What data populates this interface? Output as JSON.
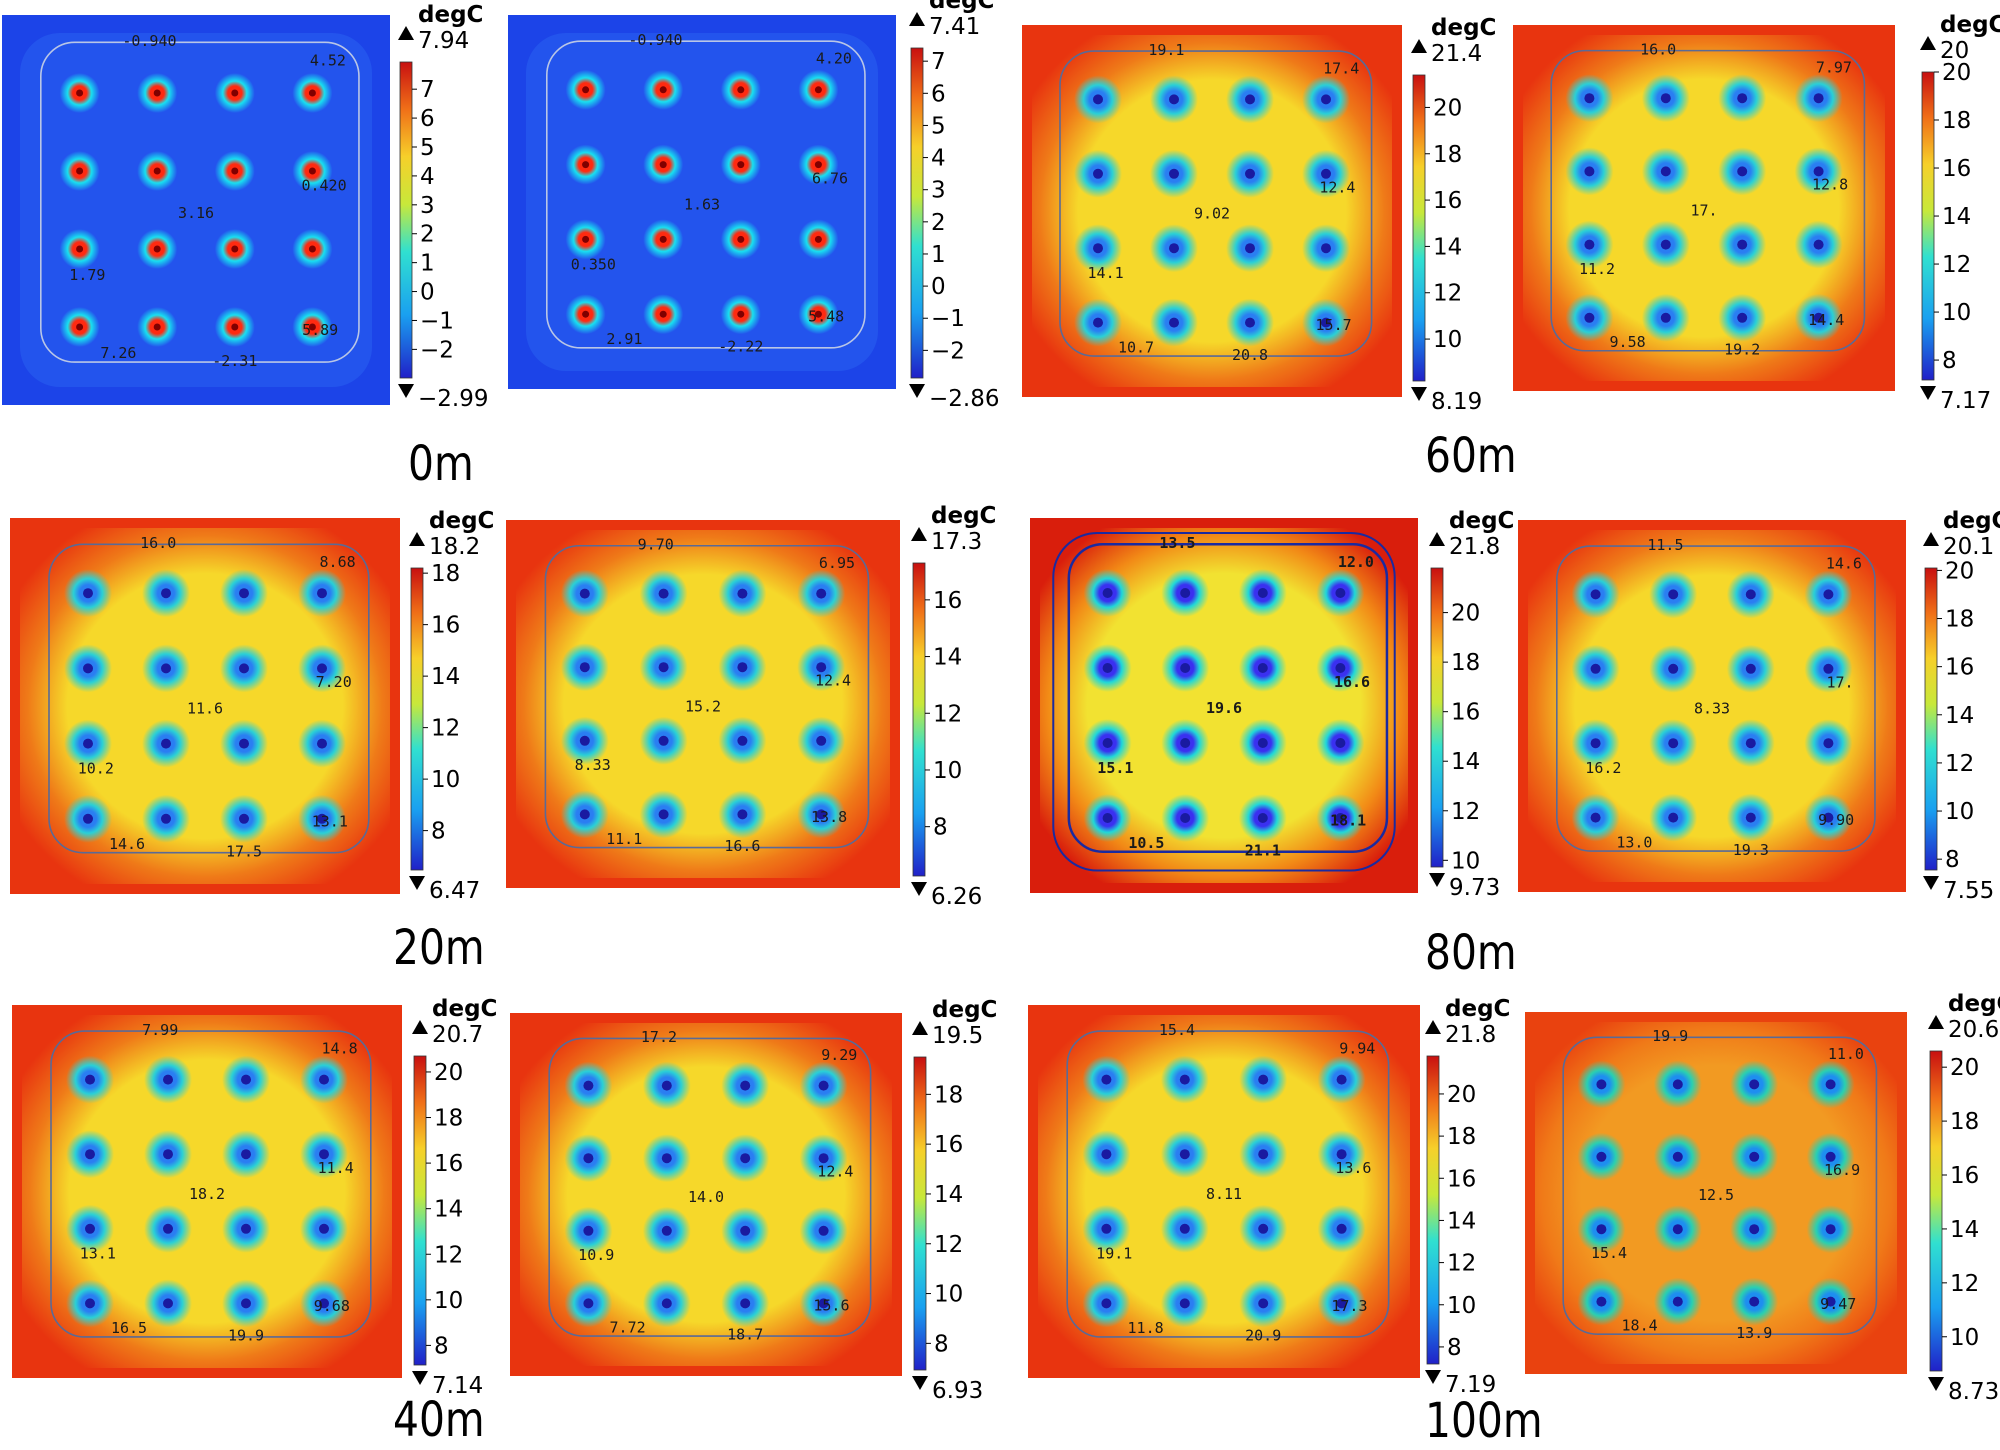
{
  "colorbar_unit": "degC",
  "depth_labels": [
    "0m",
    "20m",
    "40m",
    "60m",
    "80m",
    "100m"
  ],
  "panels": [
    {
      "id": "p0m-a",
      "theme": "cold",
      "max": "7.94",
      "min": "−2.99",
      "ticks": [
        {
          "v": 7,
          "t": "7"
        },
        {
          "v": 6,
          "t": "6"
        },
        {
          "v": 5,
          "t": "5"
        },
        {
          "v": 4,
          "t": "4"
        },
        {
          "v": 3,
          "t": "3"
        },
        {
          "v": 2,
          "t": "2"
        },
        {
          "v": 1,
          "t": "1"
        },
        {
          "v": 0,
          "t": "0"
        },
        {
          "v": -1,
          "t": "−1"
        },
        {
          "v": -2,
          "t": "−2"
        }
      ],
      "labels": [
        {
          "t": "-0.940"
        },
        {
          "t": "4.52"
        },
        {
          "t": "3.16"
        },
        {
          "t": "1.79"
        },
        {
          "t": "0.420"
        },
        {
          "t": "5.89"
        },
        {
          "t": "7.26"
        },
        {
          "t": "-2.31"
        }
      ]
    },
    {
      "id": "p0m-b",
      "theme": "cold",
      "max": "7.41",
      "min": "−2.86",
      "ticks": [
        {
          "v": 7,
          "t": "7"
        },
        {
          "v": 6,
          "t": "6"
        },
        {
          "v": 5,
          "t": "5"
        },
        {
          "v": 4,
          "t": "4"
        },
        {
          "v": 3,
          "t": "3"
        },
        {
          "v": 2,
          "t": "2"
        },
        {
          "v": 1,
          "t": "1"
        },
        {
          "v": 0,
          "t": "0"
        },
        {
          "v": -1,
          "t": "−1"
        },
        {
          "v": -2,
          "t": "−2"
        }
      ],
      "labels": [
        {
          "t": "-0.940"
        },
        {
          "t": "4.20"
        },
        {
          "t": "1.63"
        },
        {
          "t": "0.350"
        },
        {
          "t": "6.76"
        },
        {
          "t": "5.48"
        },
        {
          "t": "2.91"
        },
        {
          "t": "-2.22"
        }
      ]
    },
    {
      "id": "p60m-a",
      "theme": "warm",
      "max": "21.4",
      "min": "8.19",
      "ticks": [
        {
          "v": 20,
          "t": "20"
        },
        {
          "v": 18,
          "t": "18"
        },
        {
          "v": 16,
          "t": "16"
        },
        {
          "v": 14,
          "t": "14"
        },
        {
          "v": 12,
          "t": "12"
        },
        {
          "v": 10,
          "t": "10"
        }
      ],
      "labels": [
        {
          "t": "19.1"
        },
        {
          "t": "17.4"
        },
        {
          "t": "9.02"
        },
        {
          "t": "14.1"
        },
        {
          "t": "12.4"
        },
        {
          "t": "15.7"
        },
        {
          "t": "10.7"
        },
        {
          "t": "20.8"
        }
      ]
    },
    {
      "id": "p60m-b",
      "theme": "warm",
      "max": "20",
      "min": "7.17",
      "ticks": [
        {
          "v": 20,
          "t": "20"
        },
        {
          "v": 18,
          "t": "18"
        },
        {
          "v": 16,
          "t": "16"
        },
        {
          "v": 14,
          "t": "14"
        },
        {
          "v": 12,
          "t": "12"
        },
        {
          "v": 10,
          "t": "10"
        },
        {
          "v": 8,
          "t": "8"
        }
      ],
      "labels": [
        {
          "t": "16.0"
        },
        {
          "t": "7.97"
        },
        {
          "t": "17."
        },
        {
          "t": "11.2"
        },
        {
          "t": "12.8"
        },
        {
          "t": "14.4"
        },
        {
          "t": "9.58"
        },
        {
          "t": "19.2"
        }
      ]
    },
    {
      "id": "p20m-a",
      "theme": "warm",
      "max": "18.2",
      "min": "6.47",
      "ticks": [
        {
          "v": 18,
          "t": "18"
        },
        {
          "v": 16,
          "t": "16"
        },
        {
          "v": 14,
          "t": "14"
        },
        {
          "v": 12,
          "t": "12"
        },
        {
          "v": 10,
          "t": "10"
        },
        {
          "v": 8,
          "t": "8"
        }
      ],
      "labels": [
        {
          "t": "16.0"
        },
        {
          "t": "8.68"
        },
        {
          "t": "11.6"
        },
        {
          "t": "10.2"
        },
        {
          "t": "7.20"
        },
        {
          "t": "13.1"
        },
        {
          "t": "14.6"
        },
        {
          "t": "17.5"
        }
      ]
    },
    {
      "id": "p20m-b",
      "theme": "warm",
      "max": "17.3",
      "min": "6.26",
      "ticks": [
        {
          "v": 16,
          "t": "16"
        },
        {
          "v": 14,
          "t": "14"
        },
        {
          "v": 12,
          "t": "12"
        },
        {
          "v": 10,
          "t": "10"
        },
        {
          "v": 8,
          "t": "8"
        }
      ],
      "labels": [
        {
          "t": "9.70"
        },
        {
          "t": "6.95"
        },
        {
          "t": "15.2"
        },
        {
          "t": "8.33"
        },
        {
          "t": "12.4"
        },
        {
          "t": "13.8"
        },
        {
          "t": "11.1"
        },
        {
          "t": "16.6"
        }
      ]
    },
    {
      "id": "p80m-a",
      "theme": "hot",
      "max": "21.8",
      "min": "9.73",
      "ticks": [
        {
          "v": 20,
          "t": "20"
        },
        {
          "v": 18,
          "t": "18"
        },
        {
          "v": 16,
          "t": "16"
        },
        {
          "v": 14,
          "t": "14"
        },
        {
          "v": 12,
          "t": "12"
        },
        {
          "v": 10,
          "t": "10"
        }
      ],
      "labels": [
        {
          "t": "13.5"
        },
        {
          "t": "12.0"
        },
        {
          "t": "19.6"
        },
        {
          "t": "15.1"
        },
        {
          "t": "16.6"
        },
        {
          "t": "18.1"
        },
        {
          "t": "10.5"
        },
        {
          "t": "21.1"
        }
      ]
    },
    {
      "id": "p80m-b",
      "theme": "warm",
      "max": "20.1",
      "min": "7.55",
      "ticks": [
        {
          "v": 20,
          "t": "20"
        },
        {
          "v": 18,
          "t": "18"
        },
        {
          "v": 16,
          "t": "16"
        },
        {
          "v": 14,
          "t": "14"
        },
        {
          "v": 12,
          "t": "12"
        },
        {
          "v": 10,
          "t": "10"
        },
        {
          "v": 8,
          "t": "8"
        }
      ],
      "labels": [
        {
          "t": "11.5"
        },
        {
          "t": "14.6"
        },
        {
          "t": "8.33"
        },
        {
          "t": "16.2"
        },
        {
          "t": "17."
        },
        {
          "t": "9.90"
        },
        {
          "t": "13.0"
        },
        {
          "t": "19.3"
        }
      ]
    },
    {
      "id": "p40m-a",
      "theme": "warm",
      "max": "20.7",
      "min": "7.14",
      "ticks": [
        {
          "v": 20,
          "t": "20"
        },
        {
          "v": 18,
          "t": "18"
        },
        {
          "v": 16,
          "t": "16"
        },
        {
          "v": 14,
          "t": "14"
        },
        {
          "v": 12,
          "t": "12"
        },
        {
          "v": 10,
          "t": "10"
        },
        {
          "v": 8,
          "t": "8"
        }
      ],
      "labels": [
        {
          "t": "7.99"
        },
        {
          "t": "14.8"
        },
        {
          "t": "18.2"
        },
        {
          "t": "13.1"
        },
        {
          "t": "11.4"
        },
        {
          "t": "9.68"
        },
        {
          "t": "16.5"
        },
        {
          "t": "19.9"
        }
      ]
    },
    {
      "id": "p40m-b",
      "theme": "warm",
      "max": "19.5",
      "min": "6.93",
      "ticks": [
        {
          "v": 18,
          "t": "18"
        },
        {
          "v": 16,
          "t": "16"
        },
        {
          "v": 14,
          "t": "14"
        },
        {
          "v": 12,
          "t": "12"
        },
        {
          "v": 10,
          "t": "10"
        },
        {
          "v": 8,
          "t": "8"
        }
      ],
      "labels": [
        {
          "t": "17.2"
        },
        {
          "t": "9.29"
        },
        {
          "t": "14.0"
        },
        {
          "t": "10.9"
        },
        {
          "t": "12.4"
        },
        {
          "t": "15.6"
        },
        {
          "t": "7.72"
        },
        {
          "t": "18.7"
        }
      ]
    },
    {
      "id": "p100m-a",
      "theme": "warm",
      "max": "21.8",
      "min": "7.19",
      "ticks": [
        {
          "v": 20,
          "t": "20"
        },
        {
          "v": 18,
          "t": "18"
        },
        {
          "v": 16,
          "t": "16"
        },
        {
          "v": 14,
          "t": "14"
        },
        {
          "v": 12,
          "t": "12"
        },
        {
          "v": 10,
          "t": "10"
        },
        {
          "v": 8,
          "t": "8"
        }
      ],
      "labels": [
        {
          "t": "15.4"
        },
        {
          "t": "9.94"
        },
        {
          "t": "8.11"
        },
        {
          "t": "19.1"
        },
        {
          "t": "13.6"
        },
        {
          "t": "17.3"
        },
        {
          "t": "11.8"
        },
        {
          "t": "20.9"
        }
      ]
    },
    {
      "id": "p100m-b",
      "theme": "orange",
      "max": "20.6",
      "min": "8.73",
      "ticks": [
        {
          "v": 20,
          "t": "20"
        },
        {
          "v": 18,
          "t": "18"
        },
        {
          "v": 16,
          "t": "16"
        },
        {
          "v": 14,
          "t": "14"
        },
        {
          "v": 12,
          "t": "12"
        },
        {
          "v": 10,
          "t": "10"
        }
      ],
      "labels": [
        {
          "t": "19.9"
        },
        {
          "t": "11.0"
        },
        {
          "t": "12.5"
        },
        {
          "t": "15.4"
        },
        {
          "t": "16.9"
        },
        {
          "t": "9.47"
        },
        {
          "t": "18.4"
        },
        {
          "t": "13.9"
        }
      ]
    }
  ]
}
